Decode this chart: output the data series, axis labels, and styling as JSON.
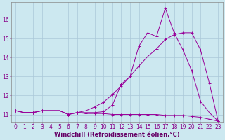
{
  "background_color": "#cce8f0",
  "line_color": "#990099",
  "grid_color": "#aac8d8",
  "xlabel": "Windchill (Refroidissement éolien,°C)",
  "xlabel_fontsize": 6.0,
  "tick_fontsize": 5.5,
  "xlim": [
    -0.5,
    23.5
  ],
  "ylim": [
    10.6,
    16.9
  ],
  "yticks": [
    11,
    12,
    13,
    14,
    15,
    16
  ],
  "xticks": [
    0,
    1,
    2,
    3,
    4,
    5,
    6,
    7,
    8,
    9,
    10,
    11,
    12,
    13,
    14,
    15,
    16,
    17,
    18,
    19,
    20,
    21,
    22,
    23
  ],
  "series1_x": [
    0,
    1,
    2,
    3,
    4,
    5,
    6,
    7,
    8,
    9,
    10,
    11,
    12,
    13,
    14,
    15,
    16,
    17,
    18,
    19,
    20,
    21,
    22,
    23
  ],
  "series1_y": [
    11.2,
    11.1,
    11.1,
    11.2,
    11.2,
    11.2,
    11.0,
    11.1,
    11.1,
    11.1,
    11.15,
    11.5,
    12.6,
    13.0,
    14.6,
    15.3,
    15.1,
    16.6,
    15.3,
    14.4,
    13.3,
    11.7,
    11.1,
    10.65
  ],
  "series2_x": [
    0,
    1,
    2,
    3,
    4,
    5,
    6,
    7,
    8,
    9,
    10,
    11,
    12,
    13,
    14,
    15,
    16,
    17,
    18,
    19,
    20,
    21,
    22,
    23
  ],
  "series2_y": [
    11.2,
    11.1,
    11.1,
    11.2,
    11.2,
    11.2,
    11.0,
    11.1,
    11.2,
    11.4,
    11.65,
    12.05,
    12.5,
    13.0,
    13.55,
    14.05,
    14.45,
    14.95,
    15.2,
    15.3,
    15.3,
    14.4,
    12.65,
    10.65
  ],
  "series3_x": [
    0,
    1,
    2,
    3,
    4,
    5,
    6,
    7,
    8,
    9,
    10,
    11,
    12,
    13,
    14,
    15,
    16,
    17,
    18,
    19,
    20,
    21,
    22,
    23
  ],
  "series3_y": [
    11.2,
    11.1,
    11.1,
    11.2,
    11.2,
    11.2,
    11.0,
    11.1,
    11.05,
    11.05,
    11.05,
    11.0,
    11.0,
    11.0,
    11.0,
    11.0,
    11.0,
    10.95,
    10.95,
    10.95,
    10.9,
    10.85,
    10.75,
    10.65
  ]
}
